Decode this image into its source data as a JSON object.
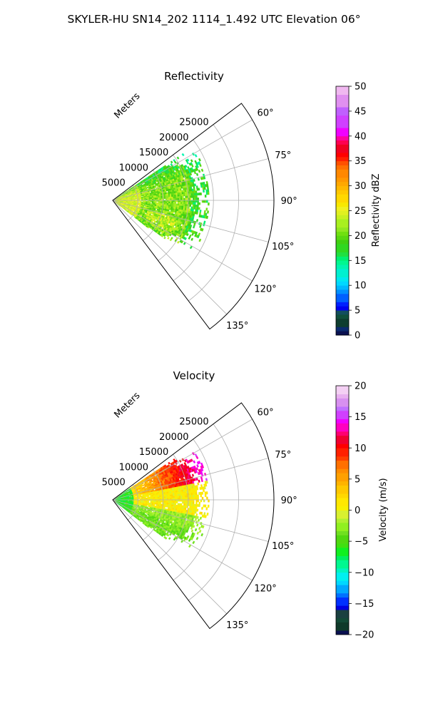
{
  "figure": {
    "title": "SKYLER-HU  SN14_202  1114_1.492 UTC Elevation 06°"
  },
  "chart_data": [
    {
      "type": "heatmap",
      "projection": "polar-sector",
      "title": "Reflectivity",
      "range_axis_label": "Meters",
      "range_ticks": [
        5000,
        10000,
        15000,
        20000,
        25000
      ],
      "range_tick_labels": [
        "5000",
        "10000",
        "15000",
        "20000",
        "25000"
      ],
      "range_max": 32000,
      "azimuth_range_deg": [
        53,
        143
      ],
      "azimuth_ticks_deg": [
        60,
        75,
        90,
        105,
        120,
        135
      ],
      "azimuth_tick_labels": [
        "60°",
        "75°",
        "90°",
        "105°",
        "120°",
        "135°"
      ],
      "grid": true,
      "colorbar": {
        "label": "Reflectivity dBZ",
        "range": [
          0,
          50
        ],
        "ticks": [
          0,
          5,
          10,
          15,
          20,
          25,
          30,
          35,
          40,
          45,
          50
        ],
        "tick_labels": [
          "0",
          "5",
          "10",
          "15",
          "20",
          "25",
          "30",
          "35",
          "40",
          "45",
          "50"
        ],
        "colormap": "NWS reflectivity"
      },
      "data_extent_m": [
        0,
        19000
      ],
      "typical_values": {
        "near_field": 24,
        "main_echo": 20,
        "edge": 14,
        "hotspots": 35
      }
    },
    {
      "type": "heatmap",
      "projection": "polar-sector",
      "title": "Velocity",
      "range_axis_label": "Meters",
      "range_ticks": [
        5000,
        10000,
        15000,
        20000,
        25000
      ],
      "range_tick_labels": [
        "5000",
        "10000",
        "15000",
        "20000",
        "25000"
      ],
      "range_max": 32000,
      "azimuth_range_deg": [
        53,
        143
      ],
      "azimuth_ticks_deg": [
        60,
        75,
        90,
        105,
        120,
        135
      ],
      "azimuth_tick_labels": [
        "60°",
        "75°",
        "90°",
        "105°",
        "120°",
        "135°"
      ],
      "grid": true,
      "colorbar": {
        "label": "Velocity (m/s)",
        "range": [
          -20,
          20
        ],
        "ticks": [
          -20,
          -15,
          -10,
          -5,
          0,
          5,
          10,
          15,
          20
        ],
        "tick_labels": [
          "−20",
          "−15",
          "−10",
          "−5",
          "0",
          "5",
          "10",
          "15",
          "20"
        ],
        "colormap": "NWS velocity"
      },
      "data_extent_m": [
        0,
        19000
      ],
      "typical_values": {
        "near_field": -6,
        "mid_range": 2,
        "far_north": 10,
        "south_sector": -3
      }
    }
  ]
}
